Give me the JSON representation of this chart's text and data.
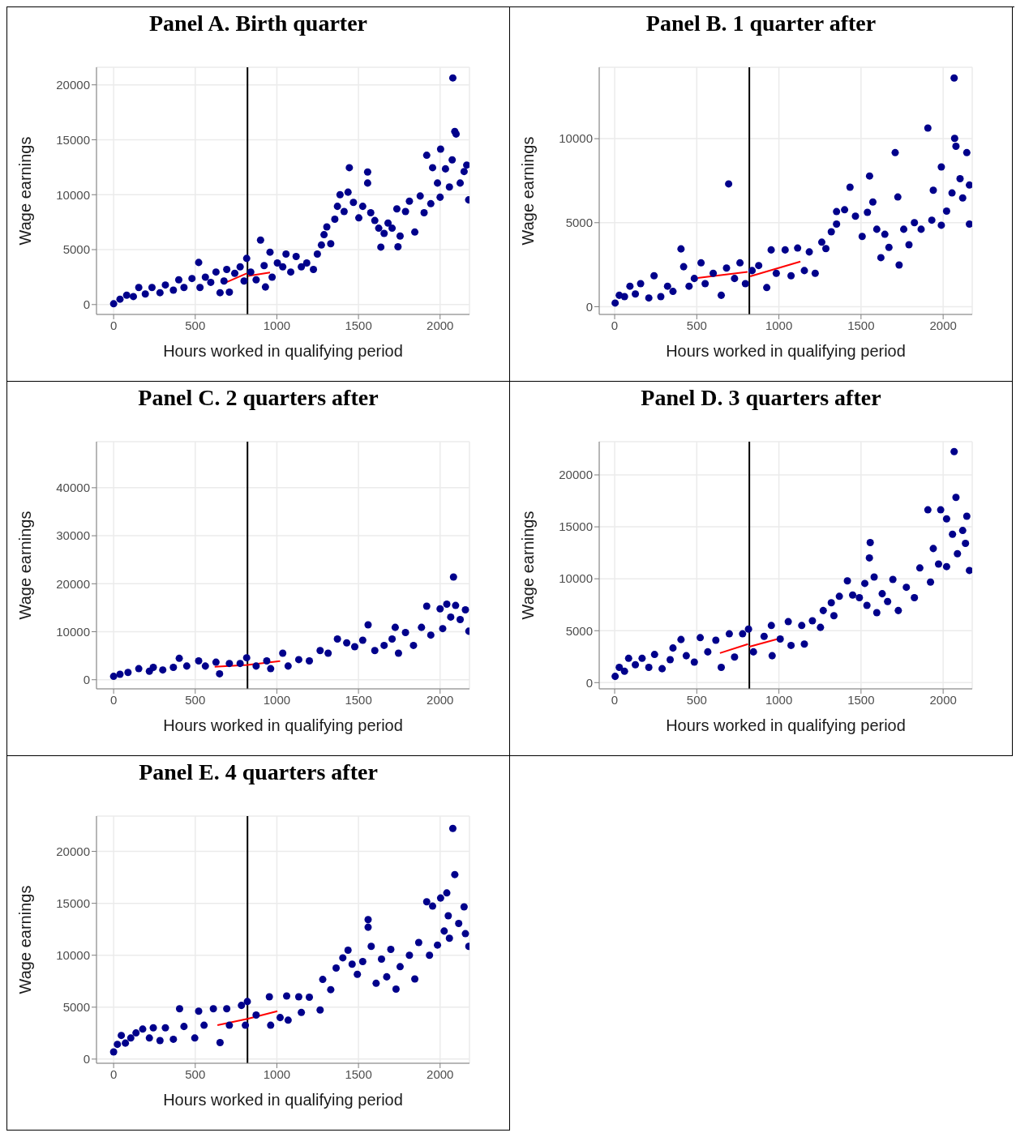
{
  "chart_data": [
    {
      "type": "scatter",
      "title": "Panel A. Birth quarter",
      "xlabel": "Hours worked in qualifying period",
      "ylabel": "Wage earnings",
      "xlim": [
        -105,
        2180
      ],
      "xticks": [
        0,
        500,
        1000,
        1500,
        2000
      ],
      "ylim": [
        -900,
        21600
      ],
      "yticks": [
        0,
        5000,
        10000,
        15000,
        20000
      ],
      "grid": true,
      "marker": "circle",
      "ref_lines": [
        {
          "axis": "x",
          "value": 820,
          "color": "#000000"
        }
      ],
      "series": [
        {
          "color": "#00008b",
          "x": [
            0,
            39,
            80,
            121,
            154,
            194,
            235,
            284,
            317,
            366,
            399,
            431,
            480,
            521,
            529,
            562,
            595,
            627,
            652,
            676,
            693,
            709,
            742,
            775,
            799,
            815,
            840,
            873,
            900,
            922,
            930,
            958,
            971,
            1003,
            1036,
            1056,
            1085,
            1118,
            1150,
            1183,
            1224,
            1248,
            1273,
            1289,
            1306,
            1330,
            1355,
            1371,
            1387,
            1412,
            1436,
            1444,
            1469,
            1502,
            1526,
            1556,
            1556,
            1575,
            1600,
            1624,
            1637,
            1657,
            1681,
            1706,
            1735,
            1742,
            1755,
            1788,
            1812,
            1845,
            1878,
            1902,
            1918,
            1943,
            1954,
            1984,
            2003,
            2000,
            2033,
            2057,
            2074,
            2078,
            2090,
            2098,
            2123,
            2147,
            2163,
            2175
          ],
          "values": [
            70,
            490,
            850,
            730,
            1550,
            960,
            1550,
            1080,
            1780,
            1310,
            2250,
            1550,
            2370,
            3830,
            1550,
            2490,
            2020,
            2960,
            1080,
            2140,
            3190,
            1130,
            2840,
            3430,
            2140,
            4200,
            2960,
            2250,
            5870,
            3540,
            1600,
            4770,
            2490,
            3780,
            3430,
            4600,
            2960,
            4370,
            3430,
            3780,
            3190,
            4600,
            5420,
            6360,
            7070,
            5540,
            7770,
            8940,
            10000,
            8470,
            10230,
            12460,
            9300,
            7890,
            8940,
            12070,
            11060,
            8360,
            7650,
            6950,
            5230,
            6480,
            7420,
            6950,
            8710,
            5260,
            6240,
            8470,
            9410,
            6600,
            9880,
            8360,
            13590,
            9180,
            12460,
            11060,
            14150,
            9770,
            12350,
            10700,
            13170,
            20630,
            15750,
            15520,
            11060,
            12110,
            12700,
            9530
          ]
        },
        {
          "type": "line",
          "marker": "none",
          "color": "#ff0000",
          "x": [
            681,
            815
          ],
          "values": [
            1970,
            2840
          ]
        },
        {
          "type": "line",
          "marker": "none",
          "color": "#ff0000",
          "x": [
            824,
            958
          ],
          "values": [
            2610,
            2910
          ]
        }
      ]
    },
    {
      "type": "scatter",
      "title": "Panel B. 1 quarter after",
      "xlabel": "Hours worked in qualifying period",
      "ylabel": "Wage earnings",
      "xlim": [
        -94,
        2177
      ],
      "xticks": [
        0,
        500,
        1000,
        1500,
        2000
      ],
      "ylim": [
        -460,
        14250
      ],
      "yticks": [
        0,
        5000,
        10000
      ],
      "grid": true,
      "marker": "circle",
      "ref_lines": [
        {
          "axis": "x",
          "value": 820,
          "color": "#000000"
        }
      ],
      "series": [
        {
          "color": "#00008b",
          "x": [
            3,
            28,
            60,
            93,
            126,
            158,
            208,
            240,
            281,
            322,
            355,
            404,
            420,
            453,
            485,
            526,
            551,
            600,
            649,
            681,
            694,
            730,
            763,
            796,
            837,
            877,
            926,
            953,
            984,
            1038,
            1074,
            1114,
            1155,
            1185,
            1221,
            1261,
            1286,
            1319,
            1351,
            1351,
            1400,
            1433,
            1466,
            1507,
            1539,
            1552,
            1572,
            1596,
            1621,
            1645,
            1670,
            1708,
            1724,
            1732,
            1760,
            1792,
            1825,
            1866,
            1907,
            1940,
            1931,
            1989,
            1989,
            2021,
            2054,
            2067,
            2070,
            2078,
            2103,
            2119,
            2144,
            2160,
            2160
          ],
          "values": [
            220,
            680,
            600,
            1220,
            760,
            1370,
            520,
            1840,
            600,
            1220,
            910,
            3440,
            2380,
            1220,
            1680,
            2610,
            1370,
            1990,
            680,
            2300,
            7310,
            1680,
            2610,
            1370,
            2150,
            2450,
            1140,
            3380,
            1990,
            3380,
            1840,
            3490,
            2150,
            3260,
            1990,
            3840,
            3460,
            4460,
            4920,
            5660,
            5770,
            7110,
            5390,
            4180,
            5620,
            7780,
            6230,
            4610,
            2920,
            4310,
            3530,
            9170,
            6530,
            2480,
            4610,
            3690,
            5000,
            4610,
            10630,
            6930,
            5150,
            8320,
            4850,
            5690,
            6770,
            13610,
            10020,
            9550,
            7620,
            6470,
            9170,
            7240,
            4920
          ]
        },
        {
          "type": "line",
          "marker": "none",
          "color": "#ff0000",
          "x": [
            505,
            809
          ],
          "values": [
            1710,
            2070
          ]
        },
        {
          "type": "line",
          "marker": "none",
          "color": "#ff0000",
          "x": [
            825,
            1131
          ],
          "values": [
            1810,
            2690
          ]
        }
      ]
    },
    {
      "type": "scatter",
      "title": "Panel C. 2 quarters after",
      "xlabel": "Hours worked in qualifying period",
      "ylabel": "Wage earnings",
      "xlim": [
        -105,
        2180
      ],
      "xticks": [
        0,
        500,
        1000,
        1500,
        2000
      ],
      "ylim": [
        -1900,
        49600
      ],
      "yticks": [
        0,
        10000,
        20000,
        30000,
        40000
      ],
      "grid": true,
      "marker": "circle",
      "ref_lines": [
        {
          "axis": "x",
          "value": 820,
          "color": "#000000"
        }
      ],
      "series": [
        {
          "color": "#00008b",
          "x": [
            0,
            39,
            88,
            154,
            219,
            243,
            301,
            366,
            402,
            448,
            521,
            562,
            627,
            649,
            709,
            775,
            815,
            873,
            938,
            962,
            1036,
            1069,
            1134,
            1199,
            1265,
            1314,
            1371,
            1428,
            1477,
            1526,
            1559,
            1600,
            1657,
            1706,
            1725,
            1745,
            1788,
            1837,
            1886,
            1918,
            1943,
            2000,
            2016,
            2041,
            2065,
            2082,
            2095,
            2123,
            2155,
            2176
          ],
          "values": [
            700,
            1130,
            1510,
            2310,
            1770,
            2580,
            2040,
            2580,
            4460,
            2850,
            3920,
            2850,
            3660,
            1240,
            3390,
            3390,
            4570,
            2850,
            3920,
            2310,
            5540,
            2850,
            4190,
            3920,
            6080,
            5540,
            8490,
            7690,
            6880,
            8230,
            11450,
            6080,
            7150,
            8490,
            10910,
            5540,
            9840,
            7150,
            10910,
            15320,
            9300,
            14780,
            10650,
            15750,
            13060,
            21400,
            15480,
            12530,
            14570,
            10110
          ]
        },
        {
          "type": "line",
          "marker": "none",
          "color": "#ff0000",
          "x": [
            619,
            820,
            1020
          ],
          "values": [
            2700,
            3100,
            3900
          ]
        }
      ]
    },
    {
      "type": "scatter",
      "title": "Panel D. 3 quarters after",
      "xlabel": "Hours worked in qualifying period",
      "ylabel": "Wage earnings",
      "xlim": [
        -94,
        2177
      ],
      "xticks": [
        0,
        500,
        1000,
        1500,
        2000
      ],
      "ylim": [
        -600,
        23200
      ],
      "yticks": [
        0,
        5000,
        10000,
        15000,
        20000
      ],
      "grid": true,
      "marker": "circle",
      "ref_lines": [
        {
          "axis": "x",
          "value": 820,
          "color": "#000000"
        }
      ],
      "series": [
        {
          "color": "#00008b",
          "x": [
            3,
            28,
            60,
            85,
            126,
            167,
            208,
            243,
            289,
            338,
            355,
            404,
            436,
            485,
            521,
            567,
            616,
            649,
            698,
            730,
            779,
            815,
            845,
            910,
            954,
            959,
            1008,
            1057,
            1074,
            1139,
            1155,
            1204,
            1253,
            1270,
            1319,
            1335,
            1368,
            1417,
            1449,
            1490,
            1523,
            1536,
            1556,
            1551,
            1580,
            1596,
            1629,
            1662,
            1694,
            1727,
            1776,
            1825,
            1858,
            1907,
            1923,
            1940,
            1985,
            1972,
            2021,
            2021,
            2057,
            2067,
            2078,
            2087,
            2119,
            2144,
            2136,
            2160
          ],
          "values": [
            600,
            1470,
            1090,
            2340,
            1720,
            2340,
            1470,
            2710,
            1340,
            2210,
            3330,
            4150,
            2590,
            1970,
            4330,
            2960,
            4080,
            1470,
            4700,
            2460,
            4700,
            5150,
            2960,
            4450,
            5500,
            2590,
            4200,
            5870,
            3580,
            5500,
            3710,
            5950,
            5320,
            6940,
            7690,
            6440,
            8310,
            9800,
            8430,
            8180,
            9550,
            7440,
            13480,
            12010,
            10170,
            6740,
            8560,
            7810,
            9930,
            6940,
            9180,
            8180,
            11040,
            16640,
            9680,
            12910,
            16640,
            11420,
            15770,
            11170,
            14280,
            22240,
            17840,
            12410,
            14650,
            16020,
            13410,
            10800
          ]
        },
        {
          "type": "line",
          "marker": "none",
          "color": "#ff0000",
          "x": [
            641,
            812
          ],
          "values": [
            2840,
            3710
          ]
        },
        {
          "type": "line",
          "marker": "none",
          "color": "#ff0000",
          "x": [
            820,
            992
          ],
          "values": [
            3460,
            4200
          ]
        }
      ]
    },
    {
      "type": "scatter",
      "title": "Panel E. 4 quarters after",
      "xlabel": "Hours worked in qualifying period",
      "ylabel": "Wage earnings",
      "xlim": [
        -105,
        2180
      ],
      "xticks": [
        0,
        500,
        1000,
        1500,
        2000
      ],
      "ylim": [
        -400,
        23400
      ],
      "yticks": [
        0,
        5000,
        10000,
        15000,
        20000
      ],
      "grid": true,
      "marker": "circle",
      "ref_lines": [
        {
          "axis": "x",
          "value": 820,
          "color": "#000000"
        }
      ],
      "series": [
        {
          "color": "#00008b",
          "x": [
            0,
            23,
            47,
            72,
            105,
            137,
            178,
            219,
            243,
            284,
            317,
            366,
            404,
            431,
            497,
            521,
            554,
            611,
            652,
            693,
            709,
            783,
            819,
            807,
            873,
            954,
            962,
            1020,
            1060,
            1069,
            1134,
            1150,
            1199,
            1265,
            1281,
            1330,
            1363,
            1404,
            1436,
            1461,
            1493,
            1526,
            1559,
            1559,
            1578,
            1608,
            1641,
            1673,
            1698,
            1730,
            1755,
            1812,
            1845,
            1869,
            1918,
            1935,
            1954,
            1984,
            2003,
            2025,
            2041,
            2050,
            2057,
            2078,
            2090,
            2114,
            2147,
            2155,
            2176
          ],
          "values": [
            690,
            1420,
            2280,
            1540,
            2030,
            2520,
            2890,
            2030,
            3010,
            1790,
            3010,
            1910,
            4850,
            3140,
            2030,
            4610,
            3260,
            4850,
            1590,
            4850,
            3260,
            5170,
            5540,
            3260,
            4240,
            6000,
            3260,
            4000,
            6080,
            3750,
            6000,
            4490,
            5960,
            4730,
            7670,
            6690,
            8770,
            9750,
            10490,
            9140,
            8160,
            9390,
            13430,
            12700,
            10860,
            7300,
            9630,
            7920,
            10560,
            6740,
            8900,
            10000,
            7720,
            11230,
            15150,
            10000,
            14730,
            10980,
            15510,
            12330,
            16000,
            13800,
            11640,
            22210,
            17770,
            13060,
            14660,
            12080,
            10860
          ]
        },
        {
          "type": "line",
          "marker": "none",
          "color": "#ff0000",
          "x": [
            636,
            819,
            1003
          ],
          "values": [
            3260,
            3870,
            4610
          ]
        }
      ]
    }
  ]
}
